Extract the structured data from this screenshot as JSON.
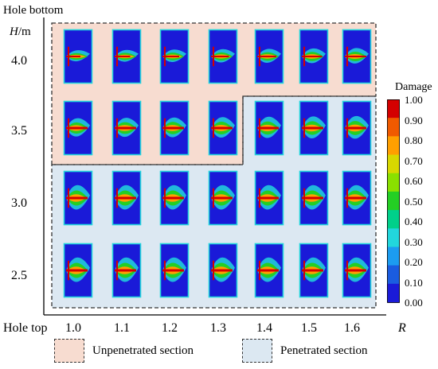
{
  "y_axis": {
    "top_label": "Hole bottom",
    "unit_symbol": "H",
    "unit_suffix": "/m",
    "ticks": [
      "4.0",
      "3.5",
      "3.0",
      "2.5"
    ]
  },
  "x_axis": {
    "start_label": "Hole top",
    "ticks": [
      "1.0",
      "1.1",
      "1.2",
      "1.3",
      "1.4",
      "1.5",
      "1.6"
    ],
    "axis_symbol": "R"
  },
  "colorbar": {
    "title": "Damage",
    "ticks": [
      "1.00",
      "0.90",
      "0.80",
      "0.70",
      "0.60",
      "0.50",
      "0.40",
      "0.30",
      "0.20",
      "0.10",
      "0.00"
    ],
    "colors": [
      "#d40000",
      "#f05a00",
      "#ff9f00",
      "#d8d800",
      "#8ae000",
      "#24cf24",
      "#00d08a",
      "#22d6dc",
      "#1c9cf0",
      "#1a5ce0",
      "#1a1ad8"
    ]
  },
  "grid": {
    "rows": 4,
    "cols": 7,
    "region_map": [
      [
        "u",
        "u",
        "u",
        "u",
        "u",
        "u",
        "u"
      ],
      [
        "u",
        "u",
        "u",
        "u",
        "p",
        "p",
        "p"
      ],
      [
        "p",
        "p",
        "p",
        "p",
        "p",
        "p",
        "p"
      ],
      [
        "p",
        "p",
        "p",
        "p",
        "p",
        "p",
        "p"
      ]
    ],
    "colors": {
      "unpenetrated_fill": "#f7dcd0",
      "penetrated_fill": "#dce8f2",
      "field_blue": "#1a1ad8"
    }
  },
  "legend": {
    "unpenetrated_label": "Unpenetrated section",
    "penetrated_label": "Penetrated section"
  }
}
